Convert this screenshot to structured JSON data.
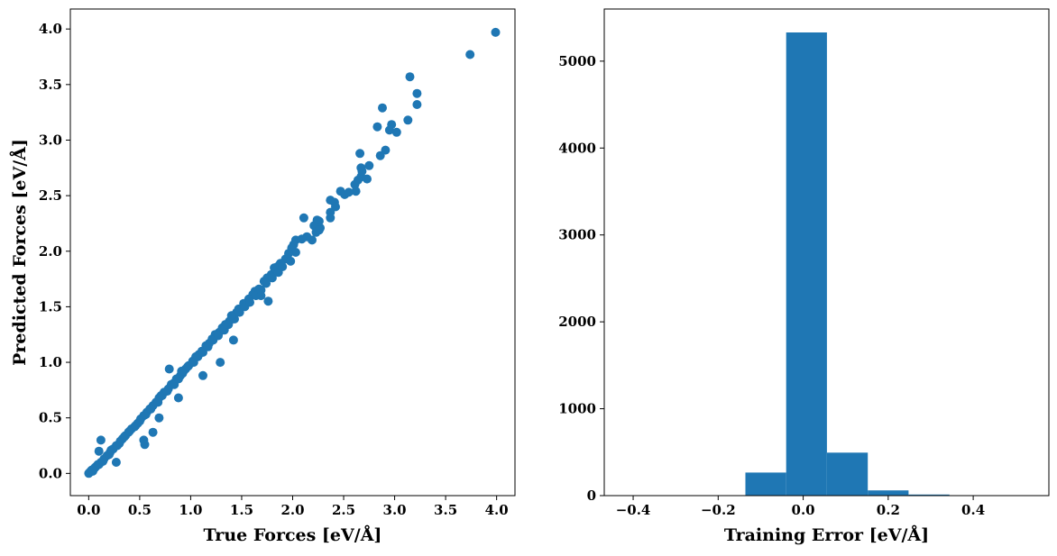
{
  "chart_data": [
    {
      "type": "scatter",
      "title": "",
      "xlabel": "True Forces [eV/Å]",
      "ylabel": "Predicted Forces [eV/Å]",
      "xlim": [
        -0.18,
        4.18
      ],
      "ylim": [
        -0.2,
        4.18
      ],
      "xticks": [
        0.0,
        0.5,
        1.0,
        1.5,
        2.0,
        2.5,
        3.0,
        3.5,
        4.0
      ],
      "xtick_labels": [
        "0.0",
        "0.5",
        "1.0",
        "1.5",
        "2.0",
        "2.5",
        "3.0",
        "3.5",
        "4.0"
      ],
      "yticks": [
        0.0,
        0.5,
        1.0,
        1.5,
        2.0,
        2.5,
        3.0,
        3.5,
        4.0
      ],
      "ytick_labels": [
        "0.0",
        "0.5",
        "1.0",
        "1.5",
        "2.0",
        "2.5",
        "3.0",
        "3.5",
        "4.0"
      ],
      "grid": false,
      "color": "#1f77b4",
      "series": [
        {
          "x": [
            3.99,
            3.74,
            3.15,
            3.22,
            3.22,
            3.13,
            2.88,
            2.83,
            2.97,
            2.95,
            3.02,
            2.91,
            2.86,
            2.66,
            2.75,
            2.67,
            2.61,
            2.67,
            2.64,
            2.68,
            2.62,
            2.73,
            2.47,
            2.41,
            2.51,
            2.55,
            2.37,
            2.37,
            2.42,
            2.37,
            2.26,
            2.24,
            2.21,
            2.27,
            2.23,
            2.11,
            2.14,
            2.19,
            2.26,
            2.03,
            2.01,
            1.99,
            2.03,
            2.09,
            1.93,
            1.96,
            1.88,
            1.85,
            1.79,
            1.82,
            1.75,
            1.72,
            1.67,
            1.63,
            1.61,
            1.57,
            1.52,
            1.47,
            1.45,
            1.41,
            1.38,
            1.34,
            1.31,
            1.28,
            1.24,
            1.21,
            1.18,
            1.15,
            1.11,
            1.08,
            1.05,
            1.02,
            0.98,
            0.95,
            0.93,
            0.9,
            0.86,
            0.83,
            0.81,
            0.78,
            0.74,
            0.71,
            0.69,
            0.66,
            0.63,
            0.6,
            0.57,
            0.54,
            0.51,
            0.48,
            0.45,
            0.42,
            0.39,
            0.36,
            0.33,
            0.3,
            0.27,
            0.24,
            0.21,
            0.18,
            0.15,
            0.12,
            0.09,
            0.07,
            0.05,
            0.03,
            0.02,
            0.01,
            0.0,
            0.04,
            0.06,
            0.1,
            0.14,
            0.2,
            0.22,
            0.28,
            0.31,
            0.35,
            0.4,
            0.46,
            0.5,
            0.56,
            0.61,
            0.68,
            0.72,
            0.77,
            0.84,
            0.88,
            0.92,
            0.97,
            1.03,
            1.07,
            1.12,
            1.17,
            1.22,
            1.27,
            1.33,
            1.37,
            1.43,
            1.48,
            1.53,
            1.58,
            1.64,
            1.69,
            1.74,
            1.8,
            1.86,
            1.9,
            0.1,
            0.12,
            0.27,
            0.54,
            0.55,
            0.63,
            0.69,
            0.88,
            0.79,
            1.12,
            1.29,
            1.4,
            1.42,
            1.76,
            1.69,
            1.98,
            0.91
          ],
          "y": [
            3.97,
            3.77,
            3.57,
            3.42,
            3.32,
            3.18,
            3.29,
            3.12,
            3.14,
            3.09,
            3.07,
            2.91,
            2.86,
            2.88,
            2.77,
            2.75,
            2.6,
            2.67,
            2.64,
            2.72,
            2.54,
            2.65,
            2.54,
            2.44,
            2.51,
            2.53,
            2.46,
            2.35,
            2.4,
            2.3,
            2.27,
            2.28,
            2.23,
            2.21,
            2.17,
            2.3,
            2.13,
            2.1,
            2.19,
            2.1,
            2.06,
            2.03,
            1.99,
            2.11,
            1.93,
            1.98,
            1.89,
            1.86,
            1.79,
            1.85,
            1.76,
            1.73,
            1.66,
            1.64,
            1.61,
            1.57,
            1.53,
            1.48,
            1.45,
            1.42,
            1.37,
            1.34,
            1.31,
            1.27,
            1.25,
            1.21,
            1.17,
            1.15,
            1.1,
            1.07,
            1.05,
            1.01,
            0.97,
            0.94,
            0.92,
            0.88,
            0.85,
            0.81,
            0.8,
            0.76,
            0.73,
            0.7,
            0.68,
            0.64,
            0.61,
            0.58,
            0.55,
            0.52,
            0.49,
            0.45,
            0.42,
            0.4,
            0.37,
            0.34,
            0.31,
            0.27,
            0.25,
            0.22,
            0.19,
            0.16,
            0.13,
            0.1,
            0.08,
            0.06,
            0.04,
            0.03,
            0.02,
            0.01,
            0.0,
            0.02,
            0.05,
            0.08,
            0.11,
            0.17,
            0.21,
            0.25,
            0.29,
            0.33,
            0.38,
            0.43,
            0.47,
            0.53,
            0.58,
            0.64,
            0.7,
            0.74,
            0.8,
            0.85,
            0.9,
            0.96,
            1.0,
            1.05,
            1.09,
            1.14,
            1.2,
            1.24,
            1.29,
            1.34,
            1.39,
            1.45,
            1.5,
            1.54,
            1.6,
            1.65,
            1.71,
            1.76,
            1.81,
            1.86,
            0.2,
            0.3,
            0.1,
            0.3,
            0.26,
            0.37,
            0.5,
            0.68,
            0.94,
            0.88,
            1.0,
            1.42,
            1.2,
            1.55,
            1.6,
            1.91,
            0.92
          ]
        }
      ]
    },
    {
      "type": "bar",
      "title": "",
      "xlabel": "Training Error [eV/Å]",
      "ylabel": "",
      "xlim": [
        -0.468,
        0.578
      ],
      "ylim": [
        0,
        5600
      ],
      "xticks": [
        -0.4,
        -0.2,
        0.0,
        0.2,
        0.4
      ],
      "xtick_labels": [
        "−0.4",
        "−0.2",
        "0.0",
        "0.2",
        "0.4"
      ],
      "yticks": [
        0,
        1000,
        2000,
        3000,
        4000,
        5000
      ],
      "ytick_labels": [
        "0",
        "1000",
        "2000",
        "3000",
        "4000",
        "5000"
      ],
      "grid": false,
      "color": "#1f77b4",
      "bin_edges": [
        -0.424,
        -0.328,
        -0.232,
        -0.136,
        -0.04,
        0.056,
        0.152,
        0.248,
        0.344,
        0.44,
        0.536
      ],
      "values": [
        5,
        3,
        3,
        265,
        5330,
        495,
        60,
        12,
        4,
        2
      ]
    }
  ]
}
